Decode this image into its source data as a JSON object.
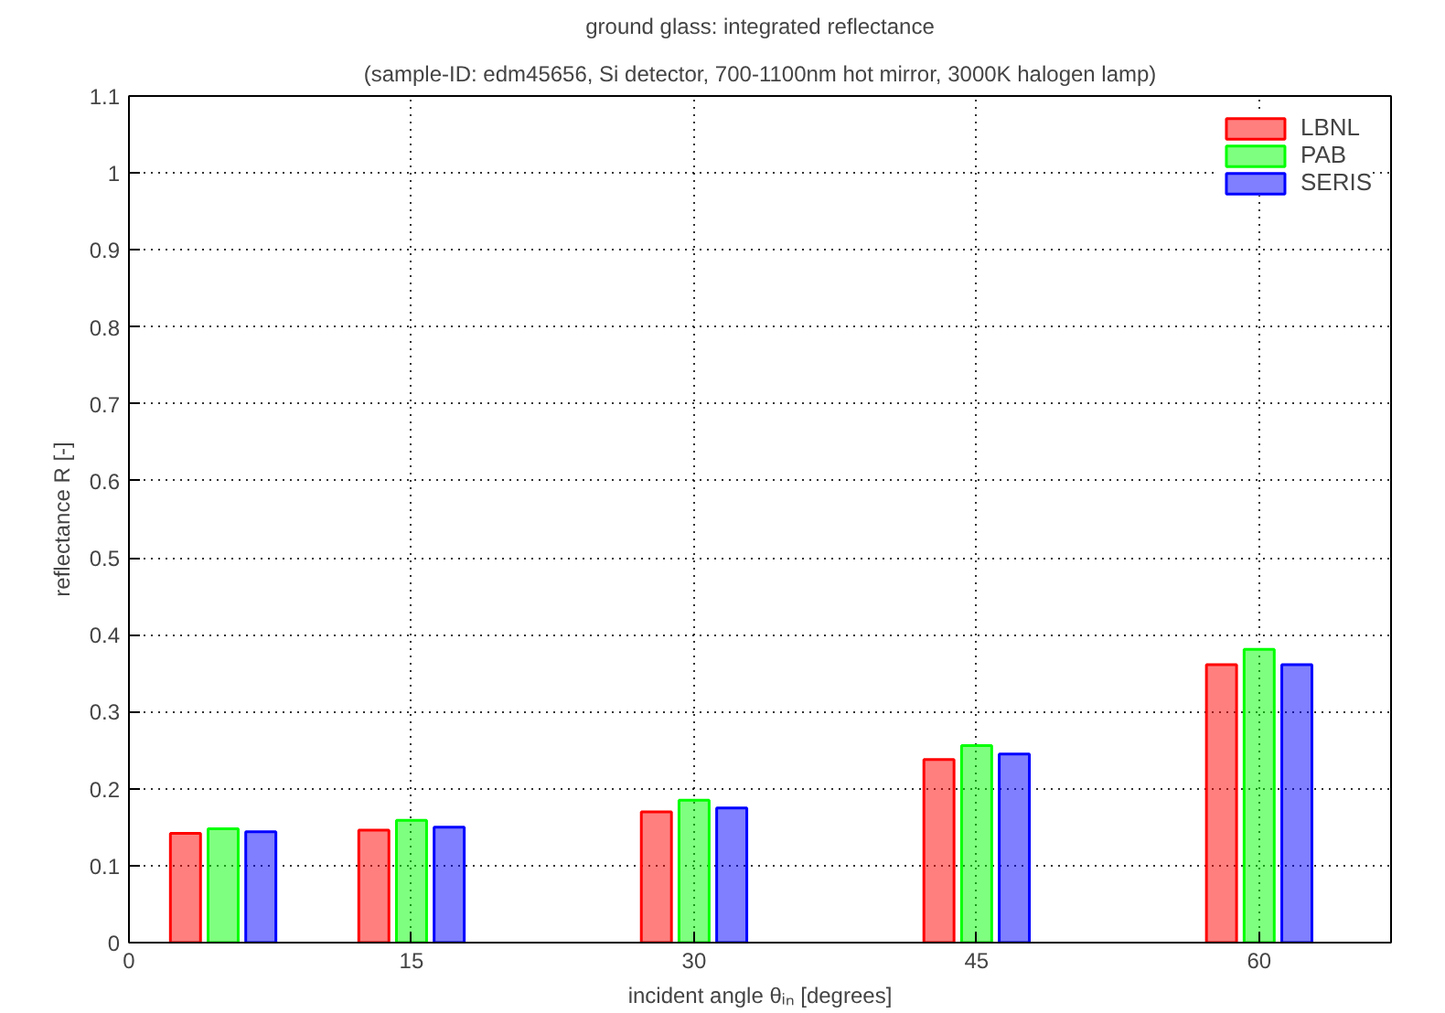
{
  "chart_data": {
    "type": "bar",
    "title": "ground glass: integrated reflectance",
    "subtitle": "(sample-ID: edm45656, Si detector, 700-1100nm hot mirror, 3000K halogen lamp)",
    "xlabel": "incident angle θᵢₙ [degrees]",
    "ylabel": "reflectance R [-]",
    "x": [
      5,
      15,
      30,
      45,
      60
    ],
    "series": [
      {
        "name": "LBNL",
        "color": "#ff0000",
        "values": [
          0.142,
          0.146,
          0.17,
          0.238,
          0.361
        ]
      },
      {
        "name": "PAB",
        "color": "#00ff00",
        "values": [
          0.148,
          0.159,
          0.185,
          0.256,
          0.381
        ]
      },
      {
        "name": "SERIS",
        "color": "#0000ff",
        "values": [
          0.144,
          0.15,
          0.175,
          0.245,
          0.361
        ]
      }
    ],
    "xlim": [
      0,
      67
    ],
    "xticks": [
      0,
      15,
      30,
      45,
      60
    ],
    "ylim": [
      0,
      1.1
    ],
    "yticks": [
      0,
      0.1,
      0.2,
      0.3,
      0.4,
      0.5,
      0.6,
      0.7,
      0.8,
      0.9,
      1,
      1.1
    ],
    "grid": true,
    "legend": "top right"
  }
}
